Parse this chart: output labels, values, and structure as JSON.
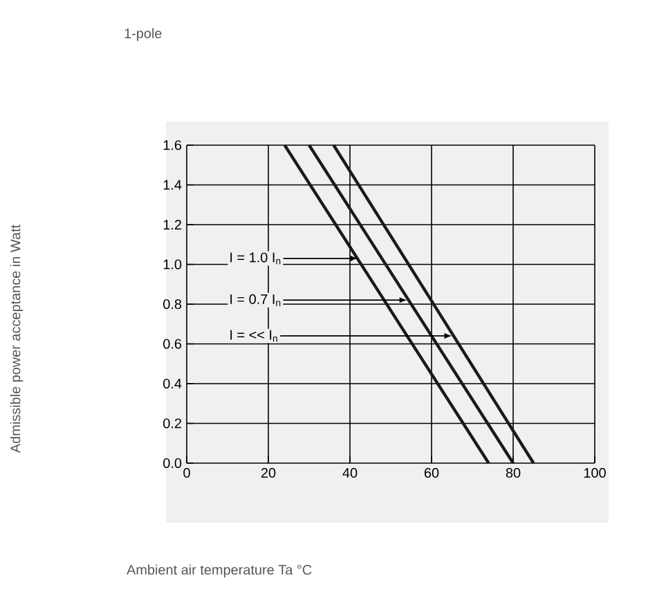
{
  "chart_data": {
    "type": "line",
    "title": "1-pole",
    "series": [
      {
        "color": "#1a1a1a",
        "x": [
          24,
          74
        ],
        "values": [
          1.6,
          0
        ]
      },
      {
        "color": "#1a1a1a",
        "x": [
          30,
          80
        ],
        "values": [
          1.6,
          0
        ]
      },
      {
        "color": "#1a1a1a",
        "x": [
          36,
          85
        ],
        "values": [
          1.6,
          0
        ]
      }
    ],
    "annotations": [
      {
        "text": "I = 1.0 I$_{n}$",
        "x": 42,
        "y": 1.03
      },
      {
        "text": "I = 0.7 I$_{n}$",
        "x": 54,
        "y": 0.82
      },
      {
        "text": "I = << I$_{n}$",
        "x": 65,
        "y": 0.64
      },
      "Admissible power acceptance in Watt",
      "Ambient air temperature Ta °C"
    ],
    "xlim": [
      0,
      100
    ],
    "xticks": [
      0,
      20,
      40,
      60,
      80,
      100
    ],
    "ylim": [
      0,
      1.6
    ],
    "yticks": [
      {
        "value": 0,
        "label": "0.0"
      },
      {
        "value": 0.2,
        "label": "0.2"
      },
      {
        "value": 0.4,
        "label": "0.4"
      },
      {
        "value": 0.6,
        "label": "0.6"
      },
      {
        "value": 0.8,
        "label": "0.8"
      },
      {
        "value": 1.0,
        "label": "1.0"
      },
      {
        "value": 1.2,
        "label": "1.2"
      },
      {
        "value": 1.4,
        "label": "1.4"
      },
      {
        "value": 1.6,
        "label": "1.6"
      }
    ],
    "grid": true,
    "marker": "none",
    "line_style": "solid"
  }
}
